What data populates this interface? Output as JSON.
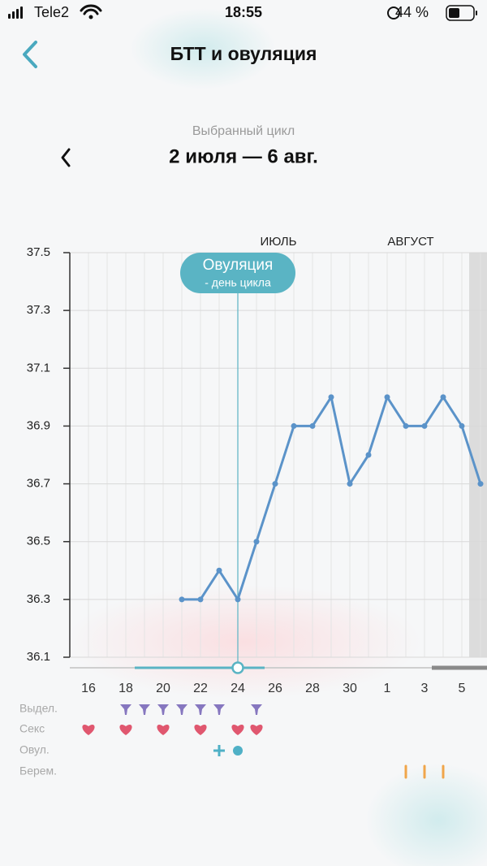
{
  "status_bar": {
    "carrier": "Tele2",
    "time": "18:55",
    "battery": "44 %"
  },
  "header": {
    "title": "БТТ и овуляция"
  },
  "cycle": {
    "caption": "Выбранный цикл",
    "range": "2 июля — 6 авг."
  },
  "chart_data": {
    "type": "line",
    "categories": [
      null,
      "16",
      null,
      "18",
      null,
      "20",
      null,
      "22",
      null,
      "24",
      null,
      "26",
      null,
      "28",
      null,
      "30",
      null,
      "1",
      null,
      "3",
      null,
      "5",
      null
    ],
    "values": [
      null,
      null,
      null,
      null,
      null,
      null,
      36.3,
      36.3,
      36.4,
      36.3,
      36.5,
      36.7,
      36.9,
      36.9,
      37.0,
      36.7,
      36.8,
      37.0,
      36.9,
      36.9,
      37.0,
      36.9,
      36.7
    ],
    "color": "#5b93c9",
    "ylim": [
      36.1,
      37.5
    ],
    "yticks": [
      36.1,
      36.3,
      36.5,
      36.7,
      36.9,
      37.1,
      37.3,
      37.5
    ],
    "grid": true,
    "annotations": [
      "ИЮЛЬ",
      "АВГУСТ"
    ],
    "ovulation": {
      "title": "Овуляция",
      "note": "- день цикла",
      "index": 9,
      "color": "#5ab4c4"
    },
    "rows": [
      {
        "label": "Выдел.",
        "color": "#8677bf",
        "days": [
          3,
          4,
          5,
          6,
          7,
          8,
          10
        ]
      },
      {
        "label": "Секс",
        "color": "#e0576f",
        "days": [
          1,
          3,
          5,
          7,
          9,
          10
        ]
      },
      {
        "label": "Овул.",
        "color": "#4fb0c6",
        "days": [
          8,
          9
        ]
      },
      {
        "label": "Берем.",
        "color": "#f0a54a",
        "days": [
          18,
          19,
          20
        ]
      }
    ]
  }
}
